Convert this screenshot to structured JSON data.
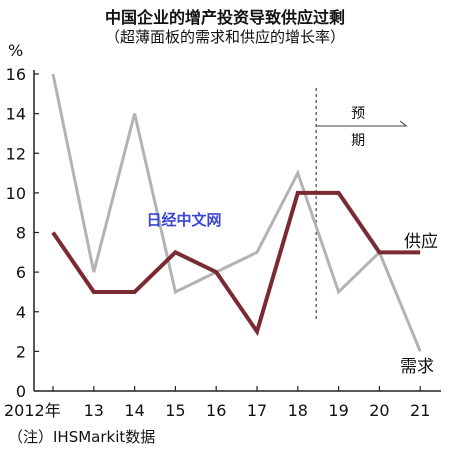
{
  "title": "中国企业的增产投资导致供应过剩",
  "subtitle": "（超薄面板的需求和供应的增长率）",
  "note": "（注）IHSMarkit数据",
  "watermark": "日经中文网",
  "colors": {
    "supply": "#7a2a33",
    "demand": "#b3b3b3",
    "axis": "#222222",
    "watermark": "#3a46d6"
  },
  "chart_data": {
    "type": "line",
    "title": "中国企业的增产投资导致供应过剩",
    "subtitle": "（超薄面板的需求和供应的增长率）",
    "ylabel": "%",
    "x": [
      "2012年",
      "13",
      "14",
      "15",
      "16",
      "17",
      "18",
      "19",
      "20",
      "21"
    ],
    "ylim": [
      0,
      16
    ],
    "yticks": [
      0,
      2,
      4,
      6,
      8,
      10,
      12,
      14,
      16
    ],
    "grid": false,
    "series": [
      {
        "name": "供应",
        "values": [
          8,
          5,
          5,
          7,
          6,
          3,
          10,
          10,
          7,
          7
        ]
      },
      {
        "name": "需求",
        "values": [
          16,
          6,
          14,
          5,
          6,
          7,
          11,
          5,
          7,
          2
        ]
      }
    ],
    "forecast": {
      "label_line1": "预",
      "label_line2": "期",
      "starts_after": "18"
    }
  }
}
